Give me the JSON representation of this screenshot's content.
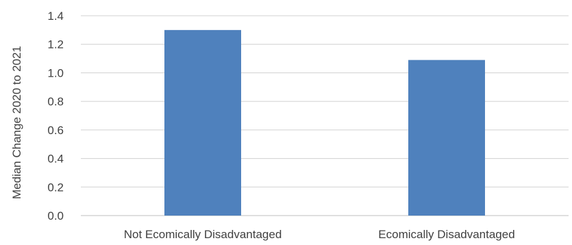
{
  "chart_data": {
    "type": "bar",
    "title": "",
    "xlabel": "",
    "ylabel": "Median Change 2020 to 2021",
    "categories": [
      "Not Ecomically Disadvantaged",
      "Ecomically Disadvantaged"
    ],
    "values": [
      1.3,
      1.09
    ],
    "ylim": [
      0,
      1.4
    ],
    "yticks": [
      0.0,
      0.2,
      0.4,
      0.6,
      0.8,
      1.0,
      1.2,
      1.4
    ],
    "ytick_labels": [
      "0.0",
      "0.2",
      "0.4",
      "0.6",
      "0.8",
      "1.0",
      "1.2",
      "1.4"
    ],
    "grid": true,
    "legend": "none",
    "bar_color": "#4f81bd",
    "grid_color": "#d0d0d0"
  }
}
